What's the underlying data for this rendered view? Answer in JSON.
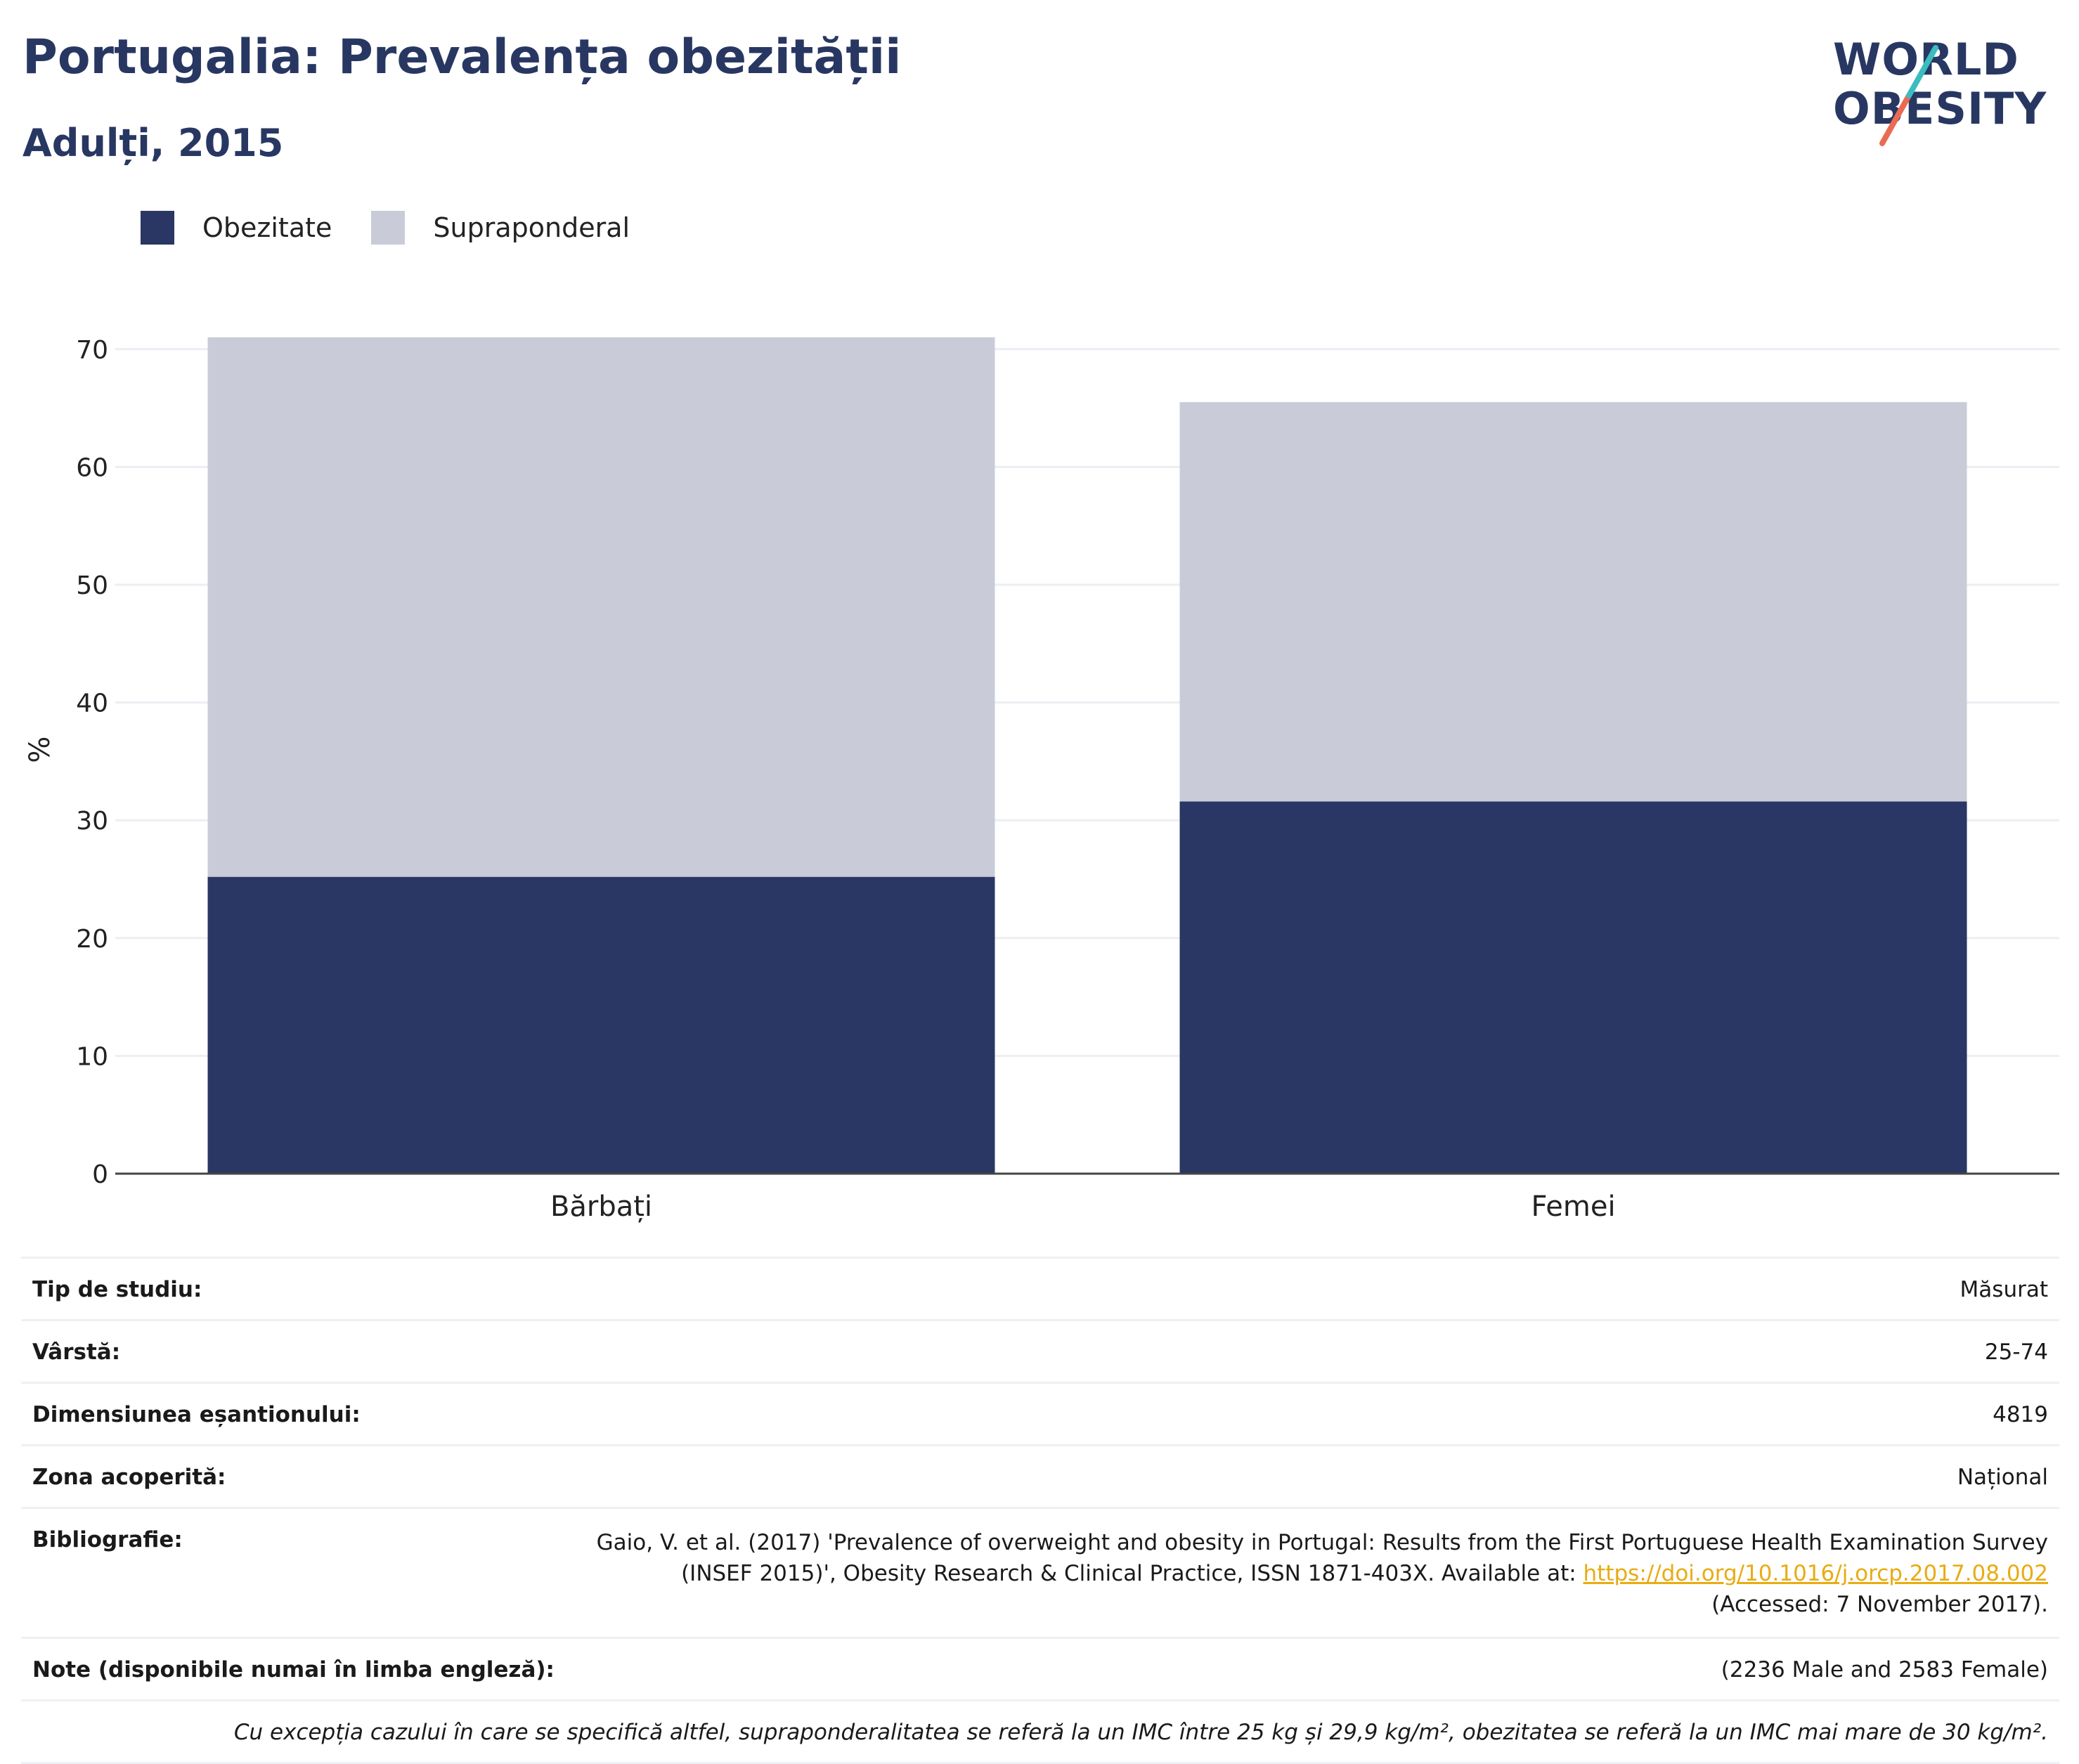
{
  "header": {
    "title": "Portugalia: Prevalența obezității",
    "subtitle": "Adulți, 2015"
  },
  "logo": {
    "line1": "WORLD",
    "line2": "OBESITY"
  },
  "colors": {
    "obezitate": "#2a3663",
    "supraponderal": "#c9ccd8",
    "title": "#283762",
    "link": "#e8ac12"
  },
  "chart_data": {
    "type": "bar",
    "stacked": true,
    "categories": [
      "Bărbați",
      "Femei"
    ],
    "series": [
      {
        "name": "Obezitate",
        "values": [
          25.2,
          31.6
        ]
      },
      {
        "name": "Supraponderal",
        "values": [
          45.8,
          33.9
        ]
      }
    ],
    "ylabel": "%",
    "ylim": [
      0,
      70
    ],
    "yticks": [
      "0",
      "10",
      "20",
      "30",
      "40",
      "50",
      "60",
      "70"
    ],
    "grid": true,
    "legend_position": "top-left"
  },
  "info": {
    "rows": [
      {
        "key": "Tip de studiu:",
        "value": "Măsurat"
      },
      {
        "key": "Vârstă:",
        "value": "25-74"
      },
      {
        "key": "Dimensiunea eșantionului:",
        "value": "4819"
      },
      {
        "key": "Zona acoperită:",
        "value": "Național"
      }
    ],
    "bibliography": {
      "key": "Bibliografie:",
      "line1": "Gaio, V. et al. (2017) 'Prevalence of overweight and obesity in Portugal: Results from the First Portuguese Health Examination Survey",
      "line2": "(INSEF 2015)', Obesity Research & Clinical Practice, ISSN 1871-403X. Available at:",
      "link": "https://doi.org/10.1016/j.orcp.2017.08.002",
      "line3": "(Accessed: 7 November 2017)."
    },
    "notes": {
      "key": "Note (disponibile numai în limba engleză):",
      "value": "(2236 Male and 2583 Female)"
    },
    "footnote": "Cu excepția cazului în care se specifică altfel, supraponderalitatea se referă la un IMC între 25 kg și 29,9 kg/m², obezitatea se referă la un IMC mai mare de 30 kg/m²."
  }
}
